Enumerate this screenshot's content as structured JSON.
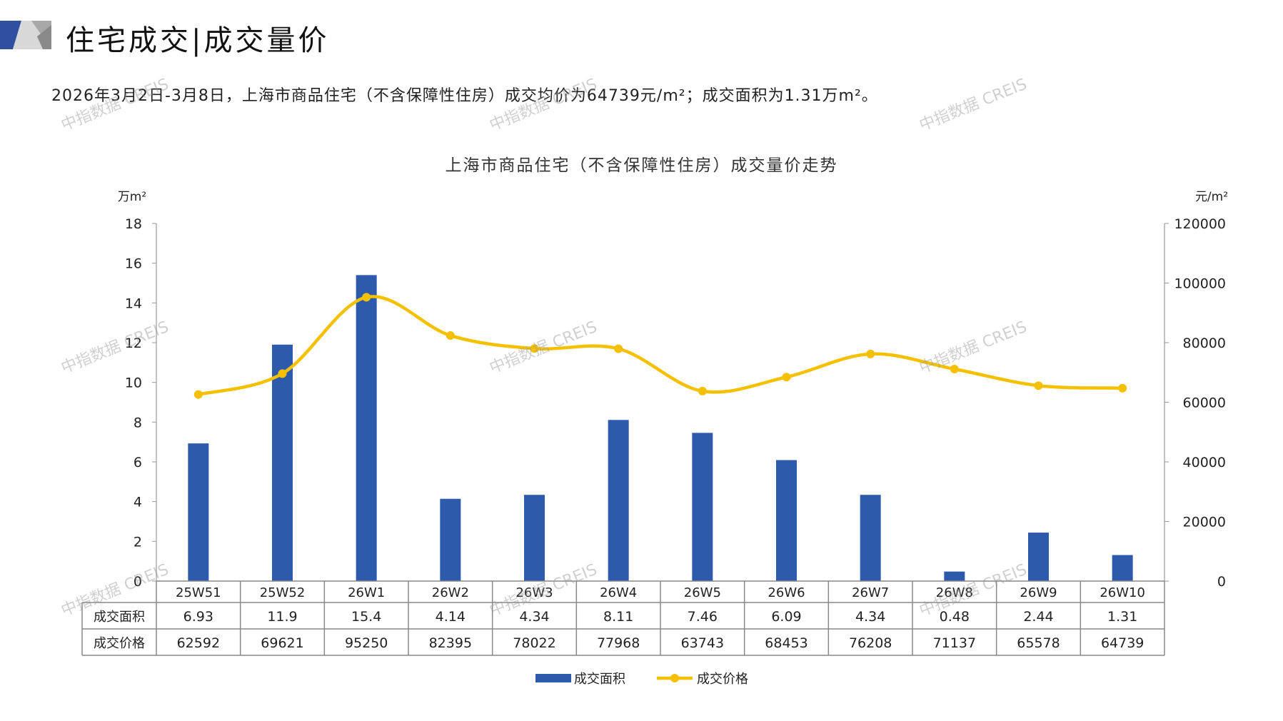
{
  "header": {
    "title": "住宅成交|成交量价"
  },
  "summary": "2026年3月2日-3月8日，上海市商品住宅（不含保障性住房）成交均价为64739元/m²；成交面积为1.31万m²。",
  "watermark": "中指数据 CREIS",
  "colors": {
    "bar": "#2E5AAC",
    "line": "#F5C000",
    "logo_blue": "#2F4FA0",
    "logo_gray": "#A8A8A8"
  },
  "chart_data": {
    "type": "bar+line",
    "title": "上海市商品住宅（不含保障性住房）成交量价走势",
    "categories": [
      "25W51",
      "25W52",
      "26W1",
      "26W2",
      "26W3",
      "26W4",
      "26W5",
      "26W6",
      "26W7",
      "26W8",
      "26W9",
      "26W10"
    ],
    "series": [
      {
        "name": "成交面积",
        "type": "bar",
        "axis": "left",
        "values": [
          6.93,
          11.9,
          15.4,
          4.14,
          4.34,
          8.11,
          7.46,
          6.09,
          4.34,
          0.48,
          2.44,
          1.31
        ],
        "labels": [
          "6.93",
          "11.9",
          "15.4",
          "4.14",
          "4.34",
          "8.11",
          "7.46",
          "6.09",
          "4.34",
          "0.48",
          "2.44",
          "1.31"
        ]
      },
      {
        "name": "成交价格",
        "type": "line",
        "axis": "right",
        "values": [
          62592,
          69621,
          95250,
          82395,
          78022,
          77968,
          63743,
          68453,
          76208,
          71137,
          65578,
          64739
        ]
      }
    ],
    "y_left": {
      "label": "万m²",
      "range": [
        0,
        18
      ],
      "ticks": [
        0,
        2,
        4,
        6,
        8,
        10,
        12,
        14,
        16,
        18
      ]
    },
    "y_right": {
      "label": "元/m²",
      "range": [
        0,
        120000
      ],
      "ticks": [
        0,
        20000,
        40000,
        60000,
        80000,
        100000,
        120000
      ]
    },
    "grid": false,
    "legend": "bottom",
    "data_table": true
  }
}
